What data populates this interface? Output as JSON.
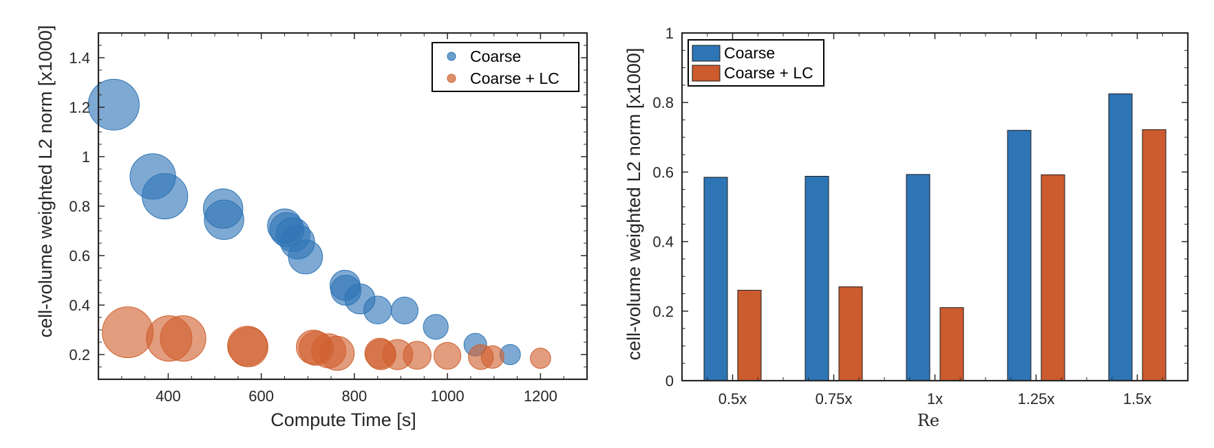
{
  "chart_data": [
    {
      "type": "scatter",
      "xlabel": "Compute Time [s]",
      "ylabel": "cell-volume weighted L2 norm [x1000]",
      "xlim": [
        250,
        1300
      ],
      "ylim": [
        0.1,
        1.5
      ],
      "x_ticks": [
        "400",
        "600",
        "800",
        "1000",
        "1200"
      ],
      "y_ticks": [
        "0.2",
        "0.4",
        "0.6",
        "0.8",
        "1",
        "1.2",
        "1.4"
      ],
      "grid": false,
      "legend_position": "top-right",
      "marker_size_encoding": "bubble area",
      "series": [
        {
          "name": "Coarse",
          "color": "#2e75b6",
          "points": [
            {
              "x": 283,
              "y": 1.21,
              "size": 1.0
            },
            {
              "x": 367,
              "y": 0.92,
              "size": 0.8
            },
            {
              "x": 393,
              "y": 0.84,
              "size": 0.8
            },
            {
              "x": 518,
              "y": 0.79,
              "size": 0.6
            },
            {
              "x": 520,
              "y": 0.745,
              "size": 0.6
            },
            {
              "x": 650,
              "y": 0.72,
              "size": 0.45
            },
            {
              "x": 655,
              "y": 0.705,
              "size": 0.45
            },
            {
              "x": 668,
              "y": 0.685,
              "size": 0.45
            },
            {
              "x": 678,
              "y": 0.655,
              "size": 0.45
            },
            {
              "x": 695,
              "y": 0.595,
              "size": 0.45
            },
            {
              "x": 780,
              "y": 0.48,
              "size": 0.35
            },
            {
              "x": 782,
              "y": 0.46,
              "size": 0.35
            },
            {
              "x": 812,
              "y": 0.425,
              "size": 0.35
            },
            {
              "x": 850,
              "y": 0.38,
              "size": 0.3
            },
            {
              "x": 908,
              "y": 0.378,
              "size": 0.28
            },
            {
              "x": 975,
              "y": 0.312,
              "size": 0.24
            },
            {
              "x": 1060,
              "y": 0.24,
              "size": 0.2
            },
            {
              "x": 1135,
              "y": 0.2,
              "size": 0.16
            }
          ]
        },
        {
          "name": "Coarse + LC",
          "color": "#d0602e",
          "points": [
            {
              "x": 313,
              "y": 0.29,
              "size": 1.0
            },
            {
              "x": 402,
              "y": 0.265,
              "size": 0.8
            },
            {
              "x": 432,
              "y": 0.265,
              "size": 0.8
            },
            {
              "x": 570,
              "y": 0.235,
              "size": 0.6
            },
            {
              "x": 572,
              "y": 0.23,
              "size": 0.6
            },
            {
              "x": 712,
              "y": 0.23,
              "size": 0.45
            },
            {
              "x": 718,
              "y": 0.225,
              "size": 0.45
            },
            {
              "x": 745,
              "y": 0.215,
              "size": 0.45
            },
            {
              "x": 763,
              "y": 0.205,
              "size": 0.45
            },
            {
              "x": 855,
              "y": 0.205,
              "size": 0.35
            },
            {
              "x": 857,
              "y": 0.2,
              "size": 0.35
            },
            {
              "x": 893,
              "y": 0.2,
              "size": 0.35
            },
            {
              "x": 935,
              "y": 0.197,
              "size": 0.3
            },
            {
              "x": 1000,
              "y": 0.195,
              "size": 0.28
            },
            {
              "x": 1072,
              "y": 0.19,
              "size": 0.24
            },
            {
              "x": 1097,
              "y": 0.19,
              "size": 0.2
            },
            {
              "x": 1200,
              "y": 0.185,
              "size": 0.16
            }
          ]
        }
      ]
    },
    {
      "type": "bar",
      "xlabel": "Re",
      "ylabel": "cell-volume weighted L2 norm [x1000]",
      "categories": [
        "0.5x",
        "0.75x",
        "1x",
        "1.25x",
        "1.5x"
      ],
      "ylim": [
        0,
        1
      ],
      "y_ticks": [
        "0",
        "0.2",
        "0.4",
        "0.6",
        "0.8",
        "1"
      ],
      "grid": false,
      "legend_position": "top-left",
      "series": [
        {
          "name": "Coarse",
          "color": "#2e75b6",
          "values": [
            0.585,
            0.588,
            0.593,
            0.72,
            0.825
          ]
        },
        {
          "name": "Coarse + LC",
          "color": "#cc5b2e",
          "values": [
            0.26,
            0.27,
            0.21,
            0.592,
            0.722
          ]
        }
      ]
    }
  ]
}
